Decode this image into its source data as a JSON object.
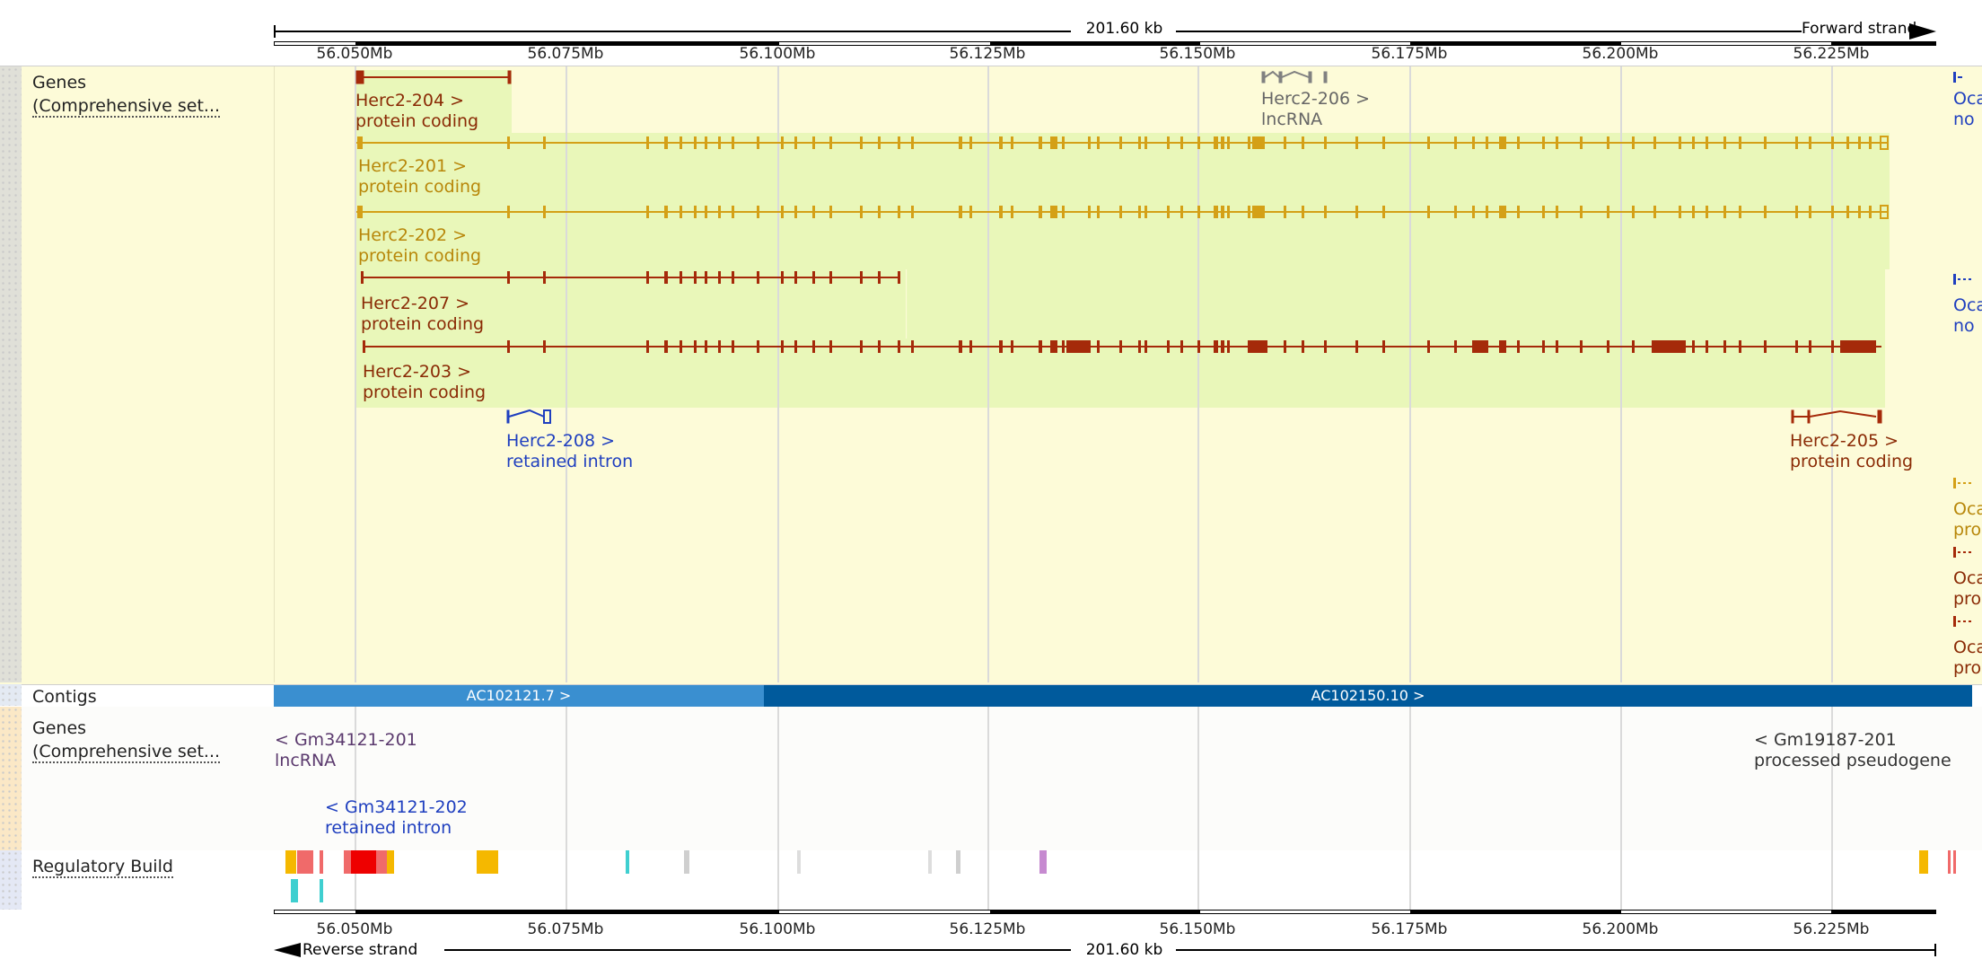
{
  "scale": {
    "length": "201.60 kb",
    "forward_strand": "Forward strand",
    "reverse_strand": "Reverse strand"
  },
  "ticks": [
    "56.050Mb",
    "56.075Mb",
    "56.100Mb",
    "56.125Mb",
    "56.150Mb",
    "56.175Mb",
    "56.200Mb",
    "56.225Mb"
  ],
  "tracks": {
    "genes_top": {
      "line1": "Genes",
      "line2": "(Comprehensive set..."
    },
    "contigs": "Contigs",
    "genes_bottom": {
      "line1": "Genes",
      "line2": "(Comprehensive set..."
    },
    "regulatory": "Regulatory Build"
  },
  "transcripts": {
    "t204": {
      "name": "Herc2-204 >",
      "type": "protein coding"
    },
    "t206": {
      "name": "Herc2-206 >",
      "type": "lncRNA"
    },
    "t201": {
      "name": "Herc2-201 >",
      "type": "protein coding"
    },
    "t202": {
      "name": "Herc2-202 >",
      "type": "protein coding"
    },
    "t207": {
      "name": "Herc2-207 >",
      "type": "protein coding"
    },
    "t203": {
      "name": "Herc2-203 >",
      "type": "protein coding"
    },
    "t208": {
      "name": "Herc2-208 >",
      "type": "retained intron"
    },
    "t205": {
      "name": "Herc2-205 >",
      "type": "protein coding"
    },
    "gm34121_201": {
      "name": "< Gm34121-201",
      "type": "lncRNA"
    },
    "gm34121_202": {
      "name": "< Gm34121-202",
      "type": "retained intron"
    },
    "gm19187_201": {
      "name": "< Gm19187-201",
      "type": "processed pseudogene"
    }
  },
  "clipped_right": {
    "c1a": "Oca",
    "c1b": "no",
    "c2a": "Oca",
    "c2b": "no",
    "c3a": "Oca",
    "c3b": "pro",
    "c4a": "Oca",
    "c4b": "pro",
    "c5a": "Oca",
    "c5b": "pro"
  },
  "contigs": {
    "left": "AC102121.7 >",
    "right": "AC102150.10 >"
  },
  "colors": {
    "protein_coding_red": "#a52a0a",
    "gold": "#d4a017",
    "lncRNA_grey": "#808080",
    "retained_intron_blue": "#1f3fbf",
    "pseudogene_grey": "#555555",
    "contig_light": "#3a8fd0",
    "contig_dark": "#005a9c"
  }
}
